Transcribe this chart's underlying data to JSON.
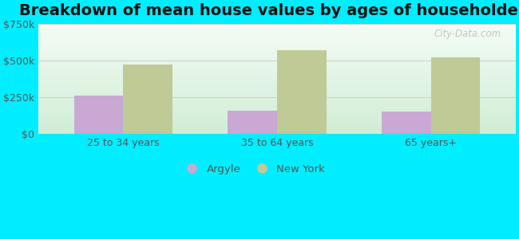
{
  "title": "Breakdown of mean house values by ages of householders",
  "categories": [
    "25 to 34 years",
    "35 to 64 years",
    "65 years+"
  ],
  "argyle_values": [
    262000,
    162000,
    155000
  ],
  "newyork_values": [
    475000,
    572000,
    525000
  ],
  "argyle_color": "#c9a8d4",
  "newyork_color": "#bfca96",
  "ylim": [
    0,
    750000
  ],
  "yticks": [
    0,
    250000,
    500000,
    750000
  ],
  "ytick_labels": [
    "$0",
    "$250k",
    "$500k",
    "$750k"
  ],
  "figure_bg_color": "#00eeff",
  "bar_width": 0.32,
  "title_fontsize": 14,
  "legend_labels": [
    "Argyle",
    "New York"
  ],
  "watermark": "City-Data.com",
  "grid_color": "#cccccc",
  "tick_label_color": "#555555",
  "title_color": "#111111",
  "xlabel_color": "#555555"
}
